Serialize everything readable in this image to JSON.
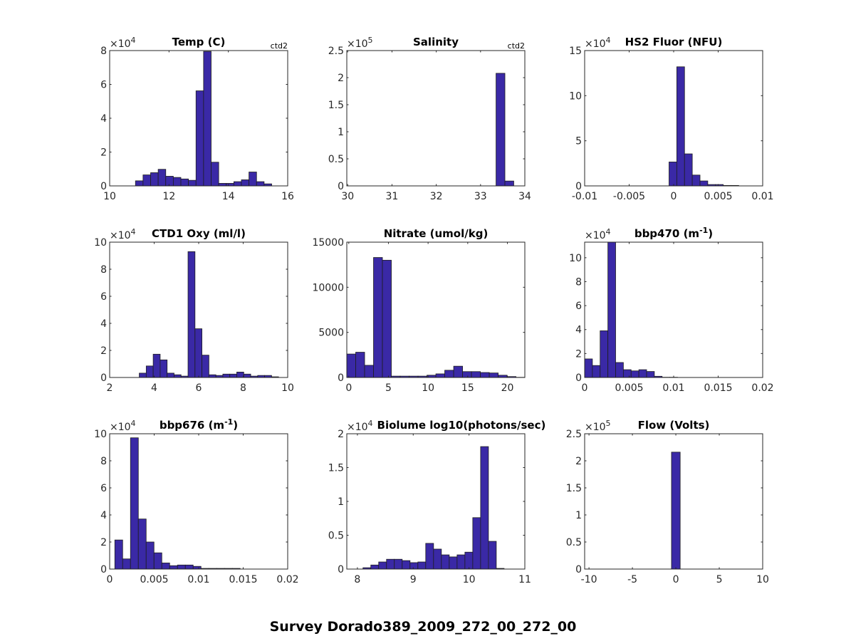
{
  "figure_title": "Survey Dorado389_2009_272_00_272_00",
  "colors": {
    "bar_fill": "#3a29a6",
    "bar_edge": "#1e1e1e",
    "axis": "#262626"
  },
  "chart_data": [
    {
      "type": "bar",
      "title": "Temp (C)",
      "corner_note": "ctd2",
      "exponent": "4",
      "xlim": [
        10,
        16
      ],
      "ylim": [
        0,
        8
      ],
      "xticks": [
        10,
        12,
        14,
        16
      ],
      "xtick_labels": [
        "10",
        "12",
        "14",
        "16"
      ],
      "yticks": [
        0,
        2,
        4,
        6,
        8
      ],
      "ytick_labels": [
        "0",
        "2",
        "4",
        "6",
        "8"
      ],
      "bin_start": 10.87,
      "bin_width": 0.255,
      "values": [
        0.3,
        0.65,
        0.78,
        0.98,
        0.57,
        0.5,
        0.41,
        0.33,
        5.62,
        7.95,
        1.4,
        0.15,
        0.15,
        0.25,
        0.36,
        0.82,
        0.25,
        0.12
      ]
    },
    {
      "type": "bar",
      "title": "Salinity",
      "corner_note": "ctd2",
      "exponent": "5",
      "xlim": [
        29.98,
        34
      ],
      "ylim": [
        0,
        2.5
      ],
      "xticks": [
        30,
        31,
        32,
        33,
        34
      ],
      "xtick_labels": [
        "30",
        "31",
        "32",
        "33",
        "34"
      ],
      "yticks": [
        0,
        0.5,
        1,
        1.5,
        2,
        2.5
      ],
      "ytick_labels": [
        "0",
        "0.5",
        "1",
        "1.5",
        "2",
        "2.5"
      ],
      "bin_start": 33.35,
      "bin_width": 0.2,
      "values": [
        2.08,
        0.09
      ]
    },
    {
      "type": "bar",
      "title": "HS2 Fluor (NFU)",
      "corner_note": "",
      "exponent": "4",
      "xlim": [
        -0.01,
        0.01
      ],
      "ylim": [
        0,
        15
      ],
      "xticks": [
        -0.01,
        -0.005,
        0,
        0.005,
        0.01
      ],
      "xtick_labels": [
        "-0.01",
        "-0.005",
        "0",
        "0.005",
        "0.01"
      ],
      "yticks": [
        0,
        5,
        10,
        15
      ],
      "ytick_labels": [
        "0",
        "5",
        "10",
        "15"
      ],
      "bin_start": -0.00052,
      "bin_width": 0.00087,
      "values": [
        2.65,
        13.2,
        3.55,
        1.2,
        0.55,
        0.15,
        0.15,
        0.05,
        0.05
      ]
    },
    {
      "type": "bar",
      "title": "CTD1 Oxy (ml/l)",
      "corner_note": "",
      "exponent": "4",
      "xlim": [
        2,
        10
      ],
      "ylim": [
        0,
        10
      ],
      "xticks": [
        2,
        4,
        6,
        8,
        10
      ],
      "xtick_labels": [
        "2",
        "4",
        "6",
        "8",
        "10"
      ],
      "yticks": [
        0,
        2,
        4,
        6,
        8,
        10
      ],
      "ytick_labels": [
        "0",
        "2",
        "4",
        "6",
        "8",
        "10"
      ],
      "bin_start": 3.33,
      "bin_width": 0.313,
      "values": [
        0.32,
        0.85,
        1.72,
        1.3,
        0.32,
        0.2,
        0.1,
        9.3,
        3.6,
        1.65,
        0.2,
        0.15,
        0.25,
        0.25,
        0.4,
        0.25,
        0.1,
        0.15,
        0.15,
        0.05
      ]
    },
    {
      "type": "bar",
      "title": "Nitrate (umol/kg)",
      "corner_note": "",
      "exponent": "",
      "xlim": [
        -0.25,
        22.2
      ],
      "ylim": [
        0,
        15000
      ],
      "xticks": [
        0,
        5,
        10,
        15,
        20
      ],
      "xtick_labels": [
        "0",
        "5",
        "10",
        "15",
        "20"
      ],
      "yticks": [
        0,
        5000,
        10000,
        15000
      ],
      "ytick_labels": [
        "0",
        "5000",
        "10000",
        "15000"
      ],
      "bin_start": -0.25,
      "bin_width": 1.123,
      "values": [
        2600,
        2800,
        1350,
        13300,
        13000,
        150,
        150,
        150,
        150,
        250,
        400,
        800,
        1250,
        650,
        650,
        550,
        500,
        250,
        100,
        20
      ]
    },
    {
      "type": "bar",
      "title": "bbp470 (m",
      "title_sup": "-1",
      "title_suffix": ")",
      "corner_note": "",
      "exponent": "4",
      "xlim": [
        0,
        0.02
      ],
      "ylim": [
        0,
        11.3
      ],
      "xticks": [
        0,
        0.005,
        0.01,
        0.015,
        0.02
      ],
      "xtick_labels": [
        "0",
        "0.005",
        "0.01",
        "0.015",
        "0.02"
      ],
      "yticks": [
        0,
        2,
        4,
        6,
        8,
        10
      ],
      "ytick_labels": [
        "0",
        "2",
        "4",
        "6",
        "8",
        "10"
      ],
      "bin_start": 0.0,
      "bin_width": 0.00087,
      "values": [
        1.55,
        1.0,
        3.9,
        11.3,
        1.25,
        0.65,
        0.55,
        0.65,
        0.5,
        0.1,
        0.02,
        0.02
      ]
    },
    {
      "type": "bar",
      "title": "bbp676 (m",
      "title_sup": "-1",
      "title_suffix": ")",
      "corner_note": "",
      "exponent": "4",
      "xlim": [
        0,
        0.02
      ],
      "ylim": [
        0,
        10
      ],
      "xticks": [
        0,
        0.005,
        0.01,
        0.015,
        0.02
      ],
      "xtick_labels": [
        "0",
        "0.005",
        "0.01",
        "0.015",
        "0.02"
      ],
      "yticks": [
        0,
        2,
        4,
        6,
        8,
        10
      ],
      "ytick_labels": [
        "0",
        "2",
        "4",
        "6",
        "8",
        "10"
      ],
      "bin_start": 0.00058,
      "bin_width": 0.00088,
      "values": [
        2.15,
        0.75,
        9.7,
        3.7,
        2.0,
        1.2,
        0.45,
        0.25,
        0.3,
        0.3,
        0.2,
        0.05,
        0.05,
        0.05,
        0.05,
        0.05
      ]
    },
    {
      "type": "bar",
      "title": "Biolume log10(photons/sec)",
      "corner_note": "",
      "exponent": "4",
      "xlim": [
        7.81,
        11
      ],
      "ylim": [
        0,
        2
      ],
      "xticks": [
        8,
        9,
        10,
        11
      ],
      "xtick_labels": [
        "8",
        "9",
        "10",
        "11"
      ],
      "yticks": [
        0,
        0.5,
        1,
        1.5,
        2
      ],
      "ytick_labels": [
        "0",
        "0.5",
        "1",
        "1.5",
        "2"
      ],
      "bin_start": 8.1,
      "bin_width": 0.1405,
      "values": [
        0.02,
        0.06,
        0.105,
        0.145,
        0.145,
        0.125,
        0.095,
        0.105,
        0.38,
        0.295,
        0.21,
        0.18,
        0.21,
        0.25,
        0.76,
        1.81,
        0.41,
        0.01
      ]
    },
    {
      "type": "bar",
      "title": "Flow (Volts)",
      "corner_note": "",
      "exponent": "5",
      "xlim": [
        -10.5,
        10
      ],
      "ylim": [
        0,
        2.5
      ],
      "xticks": [
        -10,
        -5,
        0,
        5,
        10
      ],
      "xtick_labels": [
        "-10",
        "-5",
        "0",
        "5",
        "10"
      ],
      "yticks": [
        0,
        0.5,
        1,
        1.5,
        2,
        2.5
      ],
      "ytick_labels": [
        "0",
        "0.5",
        "1",
        "1.5",
        "2",
        "2.5"
      ],
      "bin_start": -0.5,
      "bin_width": 1.0,
      "values": [
        2.16
      ]
    }
  ]
}
